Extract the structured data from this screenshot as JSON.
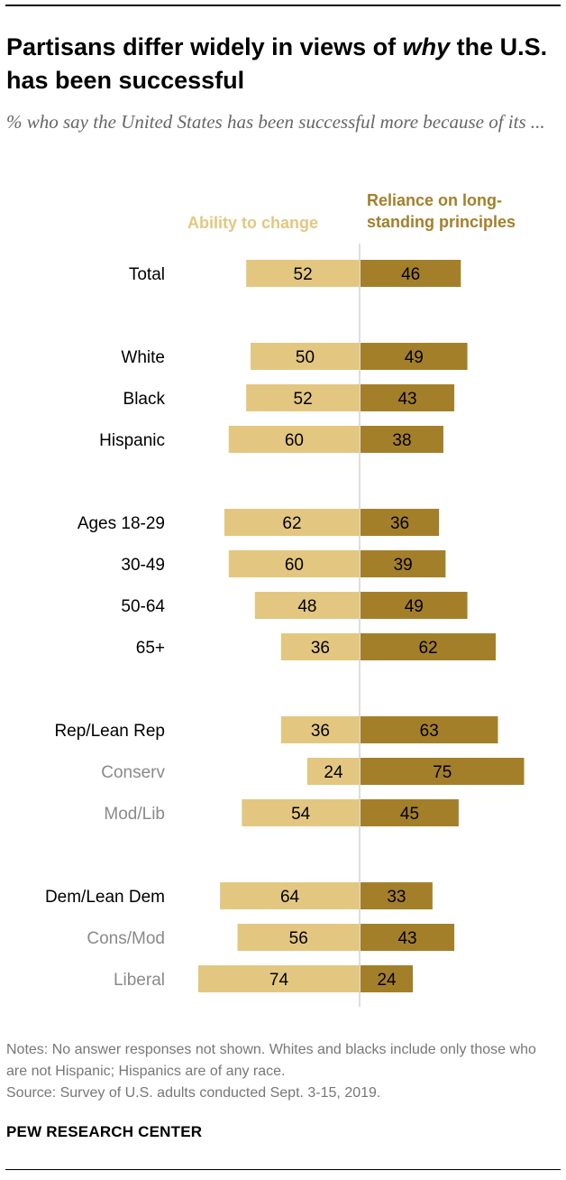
{
  "title": "Partisans differ widely in views of why the U.S. has been successful",
  "title_parts": {
    "pre": "Partisans differ widely in views of ",
    "em": "why",
    "post": " the U.S. has been successful"
  },
  "subtitle": "% who say the United States has been successful more because of its ...",
  "legend": {
    "left": "Ability to change",
    "right": "Reliance on long-standing principles",
    "right_line1": "Reliance on long-",
    "right_line2": "standing principles"
  },
  "colors": {
    "ability": "#E3C781",
    "principles": "#A47F2A",
    "label_main": "#000000",
    "label_sub": "#8a8a8a",
    "axis": "#c8c8c8"
  },
  "chart_data": {
    "type": "bar",
    "orientation": "horizontal-diverging",
    "series": [
      {
        "name": "Ability to change",
        "values": [
          52,
          50,
          52,
          60,
          62,
          60,
          48,
          36,
          36,
          24,
          54,
          64,
          56,
          74
        ]
      },
      {
        "name": "Reliance on long-standing principles",
        "values": [
          46,
          49,
          43,
          38,
          36,
          39,
          49,
          62,
          63,
          75,
          45,
          33,
          43,
          24
        ]
      }
    ],
    "categories": [
      "Total",
      "White",
      "Black",
      "Hispanic",
      "Ages 18-29",
      "30-49",
      "50-64",
      "65+",
      "Rep/Lean Rep",
      "Conserv",
      "Mod/Lib",
      "Dem/Lean Dem",
      "Cons/Mod",
      "Liberal"
    ],
    "rows": [
      {
        "label": "Total",
        "left": 52,
        "right": 46,
        "sub": false,
        "gap_before": false
      },
      {
        "label": "White",
        "left": 50,
        "right": 49,
        "sub": false,
        "gap_before": true
      },
      {
        "label": "Black",
        "left": 52,
        "right": 43,
        "sub": false,
        "gap_before": false
      },
      {
        "label": "Hispanic",
        "left": 60,
        "right": 38,
        "sub": false,
        "gap_before": false
      },
      {
        "label": "Ages 18-29",
        "left": 62,
        "right": 36,
        "sub": false,
        "gap_before": true
      },
      {
        "label": "30-49",
        "left": 60,
        "right": 39,
        "sub": false,
        "gap_before": false
      },
      {
        "label": "50-64",
        "left": 48,
        "right": 49,
        "sub": false,
        "gap_before": false
      },
      {
        "label": "65+",
        "left": 36,
        "right": 62,
        "sub": false,
        "gap_before": false
      },
      {
        "label": "Rep/Lean Rep",
        "left": 36,
        "right": 63,
        "sub": false,
        "gap_before": true
      },
      {
        "label": "Conserv",
        "left": 24,
        "right": 75,
        "sub": true,
        "gap_before": false
      },
      {
        "label": "Mod/Lib",
        "left": 54,
        "right": 45,
        "sub": true,
        "gap_before": false
      },
      {
        "label": "Dem/Lean Dem",
        "left": 64,
        "right": 33,
        "sub": false,
        "gap_before": true
      },
      {
        "label": "Cons/Mod",
        "left": 56,
        "right": 43,
        "sub": true,
        "gap_before": false
      },
      {
        "label": "Liberal",
        "left": 74,
        "right": 24,
        "sub": true,
        "gap_before": false
      }
    ],
    "xlabel": "",
    "ylabel": "",
    "grid": false,
    "legend_position": "top"
  },
  "notes": [
    "Notes: No answer responses not shown. Whites and blacks include only those who are not Hispanic; Hispanics are of any race.",
    "Source: Survey of U.S. adults conducted Sept. 3-15, 2019."
  ],
  "brand": "PEW RESEARCH CENTER"
}
